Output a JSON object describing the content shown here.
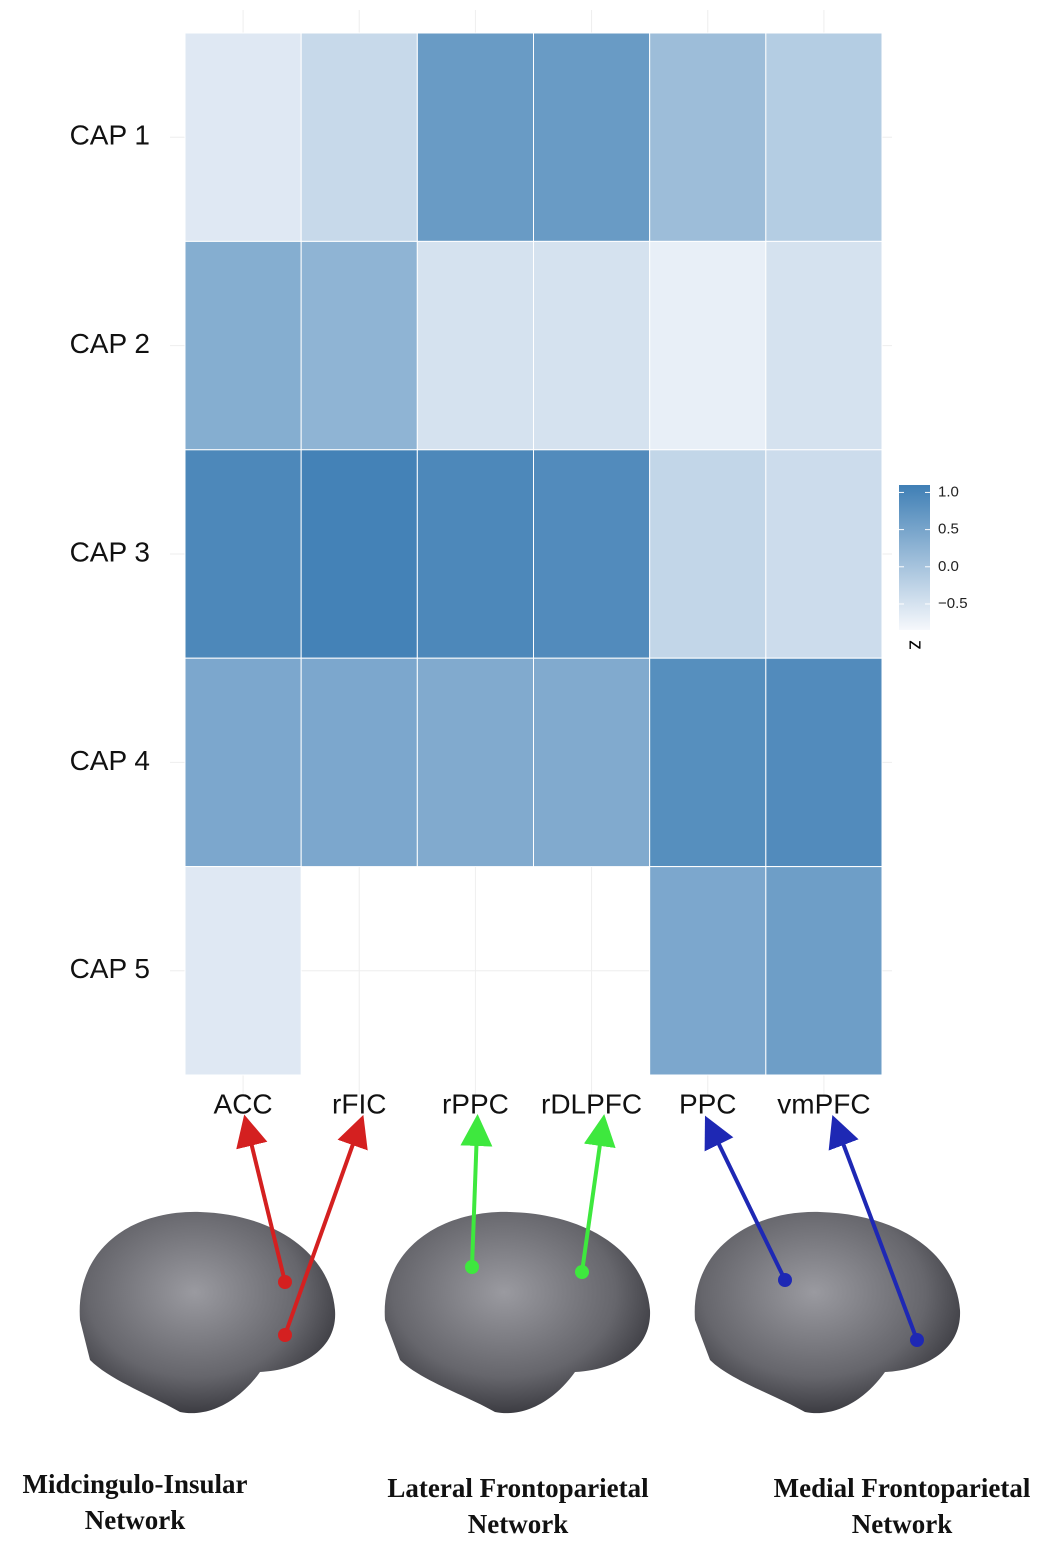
{
  "chart_data": {
    "type": "heatmap",
    "rows": [
      "CAP 1",
      "CAP 2",
      "CAP 3",
      "CAP 4",
      "CAP 5"
    ],
    "columns": [
      "ACC",
      "rFIC",
      "rPPC",
      "rDLPFC",
      "PPC",
      "vmPFC"
    ],
    "values": [
      [
        -0.6,
        -0.35,
        0.65,
        0.65,
        0.1,
        -0.15
      ],
      [
        0.35,
        0.25,
        -0.5,
        -0.5,
        -0.7,
        -0.5
      ],
      [
        0.95,
        1.05,
        0.95,
        0.9,
        -0.3,
        -0.4
      ],
      [
        0.45,
        0.45,
        0.4,
        0.4,
        0.85,
        0.9
      ],
      [
        -0.6,
        null,
        null,
        null,
        0.45,
        0.6
      ]
    ],
    "colorscale": [
      "#f6f8fc",
      "#3f7fb5"
    ],
    "clim": [
      -0.85,
      1.1
    ],
    "cticks": [
      {
        "value": 1,
        "label": "1.0"
      },
      0.5,
      {
        "value": 0,
        "label": "0.0"
      },
      {
        "value": -0.5,
        "label": "−0.5"
      }
    ],
    "legend_title": "z",
    "networks": [
      {
        "name": [
          "Midcingulo-Insular",
          "Network"
        ],
        "color": "#d42020"
      },
      {
        "name": [
          "Lateral Frontoparietal",
          "Network"
        ],
        "color": "#3ee83e"
      },
      {
        "name": [
          "Medial Frontoparietal",
          "Network"
        ],
        "color": "#1e28b4"
      }
    ]
  }
}
